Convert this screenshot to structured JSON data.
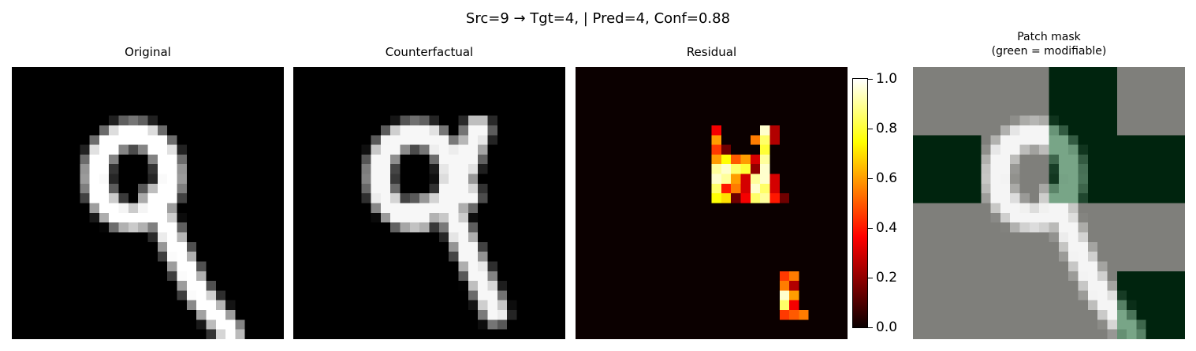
{
  "figure": {
    "suptitle": "Src=9 → Tgt=4, | Pred=4, Conf=0.88"
  },
  "panels": {
    "original": {
      "title": "Original",
      "cmap": "gray"
    },
    "counterfactual": {
      "title": "Counterfactual",
      "cmap": "gray"
    },
    "residual": {
      "title": "Residual",
      "cmap": "hot"
    },
    "mask": {
      "title_line1": "Patch mask",
      "title_line2": "(green = modifiable)",
      "overlay_color": "#0f3f1f"
    }
  },
  "colorbar": {
    "cmap": "hot",
    "range": [
      0.0,
      1.0
    ],
    "ticks": [
      "0.0",
      "0.2",
      "0.4",
      "0.6",
      "0.8",
      "1.0"
    ]
  },
  "colors": {
    "background": "#ffffff",
    "mask_unmodifiable": "#7f7f7b",
    "mask_modifiable": "#00240e"
  }
}
